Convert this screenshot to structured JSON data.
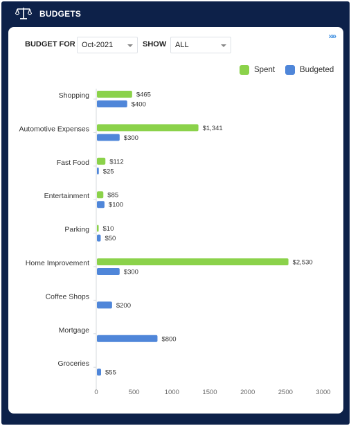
{
  "header": {
    "title": "BUDGETS",
    "icon": "scales-icon"
  },
  "expand_label": "»»",
  "filters": {
    "budget_for_label": "BUDGET FOR",
    "budget_for_value": "Oct-2021",
    "show_label": "SHOW",
    "show_value": "ALL"
  },
  "colors": {
    "spent": "#8bd24a",
    "budgeted": "#4f86d9",
    "frame": "#0d2149"
  },
  "chart_data": {
    "type": "bar",
    "orientation": "horizontal",
    "categories": [
      "Shopping",
      "Automotive Expenses",
      "Fast Food",
      "Entertainment",
      "Parking",
      "Home Improvement",
      "Coffee Shops",
      "Mortgage",
      "Groceries"
    ],
    "series": [
      {
        "name": "Spent",
        "values": [
          465,
          1341,
          112,
          85,
          10,
          2530,
          null,
          null,
          null
        ],
        "labels": [
          "$465",
          "$1,341",
          "$112",
          "$85",
          "$10",
          "$2,530",
          "",
          "",
          ""
        ]
      },
      {
        "name": "Budgeted",
        "values": [
          400,
          300,
          25,
          100,
          50,
          300,
          200,
          800,
          55
        ],
        "labels": [
          "$400",
          "$300",
          "$25",
          "$100",
          "$50",
          "$300",
          "$200",
          "$800",
          "$55"
        ]
      }
    ],
    "xlim": [
      0,
      3000
    ],
    "xticks": [
      0,
      500,
      1000,
      1500,
      2000,
      2500,
      3000
    ],
    "legend_position": "top-right",
    "grid": false
  }
}
